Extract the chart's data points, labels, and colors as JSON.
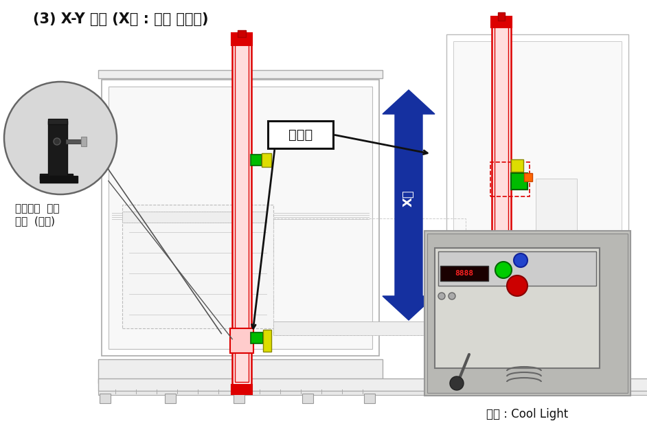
{
  "title": "(3) X-Y 로봇 (X축 : 광원 이동용)",
  "label_gwang_seom_yu": "광섬유",
  "label_gwang_won_height": "광원높이  조정",
  "label_unit_ref": "유닛  (참고)",
  "label_cool_light": "광원 : Cool Light",
  "x_axis_label": "X축",
  "bg_color": "#ffffff",
  "title_color": "#111111",
  "title_fontsize": 15,
  "arrow_color": "#1530a0",
  "red_color": "#dd0000",
  "green_color": "#00bb00",
  "yellow_color": "#dddd00",
  "line_color": "#aaaaaa",
  "dark_line": "#888888"
}
